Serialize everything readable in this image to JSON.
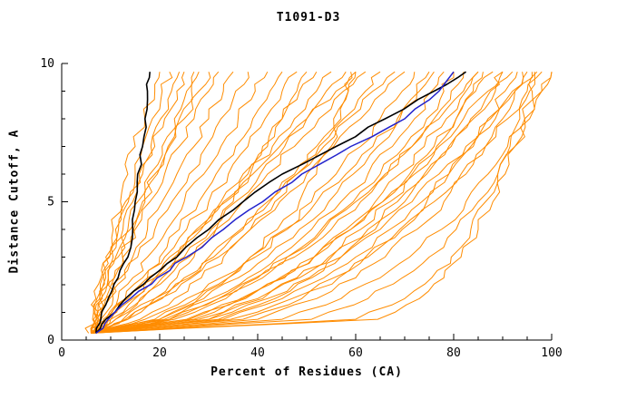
{
  "chart_data": {
    "type": "line",
    "title": "T1091-D3",
    "xlabel": "Percent of Residues (CA)",
    "ylabel": "Distance Cutoff, A",
    "xlim": [
      0,
      100
    ],
    "ylim": [
      0,
      10
    ],
    "x_major_ticks": [
      0,
      20,
      40,
      60,
      80,
      100
    ],
    "x_minor_step": 5,
    "y_major_ticks": [
      0,
      5,
      10
    ],
    "y_minor_step": 1,
    "grid": false,
    "legend": "none",
    "axis_color": "#000000",
    "background_color": "#ffffff",
    "y_levels": [
      0.25,
      0.75,
      1.5,
      2.25,
      3,
      4,
      5,
      6,
      7,
      8,
      9,
      9.7
    ],
    "series_groups": [
      {
        "name": "predicted-model-curves",
        "color": "#ff8c00",
        "width": 1,
        "jitter": 1.1,
        "series": [
          [
            6,
            6.5,
            7,
            8,
            9,
            10.5,
            12,
            13.5,
            15,
            17,
            19,
            20
          ],
          [
            7,
            7.2,
            7.8,
            8.6,
            9.6,
            11,
            13,
            15,
            16.5,
            18.5,
            20.5,
            22
          ],
          [
            6,
            7,
            7.7,
            9,
            10.5,
            12.5,
            14.5,
            16.5,
            19,
            21,
            23.5,
            25
          ],
          [
            6.5,
            7.2,
            8.3,
            9.5,
            11,
            13.5,
            15.5,
            18,
            20.5,
            23,
            25.5,
            27
          ],
          [
            6,
            7,
            8,
            9.5,
            11.5,
            14,
            16.5,
            19,
            22,
            25,
            28,
            30
          ],
          [
            7,
            7.8,
            9,
            10.8,
            12.5,
            15,
            18,
            21,
            24,
            27,
            30,
            32
          ],
          [
            6,
            7.2,
            9,
            10.7,
            12.4,
            14.7,
            17,
            19.5,
            21.7,
            24,
            26.5,
            28
          ],
          [
            6,
            7.5,
            9.8,
            12,
            14.5,
            17.5,
            20.5,
            23.5,
            27,
            30,
            33,
            35
          ],
          [
            5.5,
            6.3,
            7.2,
            8.3,
            9.8,
            11.6,
            13.6,
            15.8,
            18.2,
            20.2,
            22.4,
            24
          ],
          [
            6,
            8,
            10.5,
            13,
            15.5,
            19,
            22.5,
            26,
            29.5,
            32.5,
            35.5,
            38
          ],
          [
            6.5,
            8.5,
            11.5,
            14.5,
            17.5,
            21.5,
            25,
            29,
            32.5,
            36,
            39.5,
            42
          ],
          [
            6,
            9,
            13,
            16.5,
            20,
            24,
            28,
            31.5,
            35.5,
            39,
            42.5,
            45
          ],
          [
            6,
            9.5,
            13.5,
            17.5,
            21,
            25.5,
            30,
            34,
            38,
            41.5,
            45,
            48
          ],
          [
            6,
            13.5,
            19,
            23.5,
            27,
            31.5,
            35,
            38.5,
            42,
            45,
            48,
            50
          ],
          [
            6.5,
            10,
            14.5,
            19,
            23,
            28,
            32.5,
            37,
            41,
            45,
            48.5,
            52
          ],
          [
            6,
            10,
            15,
            19,
            23.5,
            28.5,
            33.5,
            38,
            43,
            47.5,
            52,
            55
          ],
          [
            7,
            11,
            16,
            20.5,
            25,
            30.5,
            35.5,
            40.5,
            45.5,
            50,
            54,
            58
          ],
          [
            6,
            9,
            13,
            17.5,
            22,
            27.5,
            33,
            39,
            44.5,
            50,
            56,
            60
          ],
          [
            6,
            11,
            16.5,
            21.5,
            26,
            31.5,
            37,
            42,
            47.5,
            52.5,
            57.5,
            62
          ],
          [
            6,
            13.5,
            20.5,
            26,
            31,
            37,
            42.5,
            47.5,
            52.5,
            57.5,
            62,
            65
          ],
          [
            6.5,
            12.5,
            19,
            25,
            30,
            36.5,
            42,
            48,
            53.5,
            58.5,
            63.5,
            68
          ],
          [
            6,
            13,
            20,
            26.5,
            32,
            38.5,
            44.5,
            50,
            55.5,
            61,
            66,
            70
          ],
          [
            6,
            20,
            28,
            34,
            38.5,
            44,
            48.5,
            52,
            55,
            57,
            58.5,
            59
          ],
          [
            6,
            16,
            23,
            28.5,
            33,
            38.5,
            43.5,
            48,
            52,
            55.5,
            58.5,
            60
          ],
          [
            6,
            19,
            27.5,
            34,
            39.5,
            46,
            51,
            56,
            61,
            65,
            69.5,
            72
          ],
          [
            6,
            20,
            29,
            36,
            42,
            48.5,
            54.5,
            59.5,
            64.5,
            69,
            72.5,
            75
          ],
          [
            6.5,
            21,
            30.5,
            38,
            44,
            51,
            57,
            62.5,
            67.5,
            72,
            75.5,
            78
          ],
          [
            6,
            22,
            32,
            39.5,
            46,
            53,
            59.5,
            65,
            70,
            74.5,
            78,
            80
          ],
          [
            6,
            23,
            33.5,
            41,
            47.5,
            55,
            61,
            66.5,
            71.5,
            76,
            79.5,
            82
          ],
          [
            6,
            22,
            32,
            40,
            46,
            53.5,
            60,
            66,
            71.5,
            77,
            82,
            85
          ],
          [
            6,
            27,
            37.5,
            45.5,
            51.5,
            58,
            64,
            69,
            74,
            78.5,
            82.5,
            85
          ],
          [
            6,
            26,
            37,
            45,
            51.5,
            59,
            65.5,
            71,
            76,
            80.5,
            84.5,
            88
          ],
          [
            6,
            25.5,
            36.5,
            44.5,
            51.5,
            59,
            65.5,
            71.5,
            77,
            82,
            87,
            90
          ],
          [
            6,
            32,
            43.5,
            51,
            57,
            64,
            70,
            74.5,
            79.5,
            83.5,
            87.5,
            90
          ],
          [
            6,
            28,
            40,
            48,
            55,
            62.5,
            68.5,
            74,
            79,
            84,
            88.5,
            92
          ],
          [
            6,
            37,
            49,
            56.5,
            62.5,
            69,
            74.5,
            79,
            83.5,
            87,
            90.5,
            93
          ],
          [
            6,
            30,
            42,
            50.5,
            57,
            65,
            71.5,
            77,
            82.5,
            87.5,
            92,
            95
          ],
          [
            6,
            33,
            45,
            53.5,
            60,
            67,
            73.5,
            79,
            84,
            88.5,
            92.5,
            96
          ],
          [
            6,
            34.5,
            47,
            55.5,
            62,
            69.5,
            76,
            81.5,
            86.5,
            91,
            95,
            98
          ],
          [
            6,
            45,
            57,
            65,
            71,
            77.5,
            82.5,
            87,
            91,
            94.5,
            98,
            100
          ],
          [
            6,
            51,
            62.5,
            69.5,
            75,
            80.5,
            85,
            89,
            92.5,
            95.5,
            98,
            100
          ],
          [
            6,
            64.5,
            73,
            78,
            81.5,
            85,
            88,
            90.5,
            92.5,
            94.5,
            96,
            97
          ],
          [
            6,
            60,
            70,
            75.5,
            79.5,
            83.5,
            86.5,
            89,
            91.5,
            93.5,
            95.5,
            96.5
          ],
          [
            6,
            40,
            52,
            60,
            66,
            72.5,
            78,
            82.5,
            86.5,
            90,
            92.5,
            94
          ],
          [
            6,
            30,
            41,
            48.5,
            54.5,
            61,
            67,
            72,
            76.5,
            80.5,
            84,
            86
          ],
          [
            6,
            17,
            25.5,
            32.5,
            38.5,
            45.5,
            52,
            58,
            63.5,
            68.5,
            73,
            76
          ]
        ]
      },
      {
        "name": "reference-curve-steep",
        "color": "#000000",
        "width": 1.6,
        "jitter": 0.45,
        "series": [
          [
            7,
            8,
            9.5,
            11.5,
            13.5,
            14.5,
            15,
            15.5,
            16.5,
            17,
            17.5,
            18
          ]
        ]
      },
      {
        "name": "reference-curve-diagonal",
        "color": "#000000",
        "width": 1.6,
        "jitter": 0.5,
        "series": [
          [
            7,
            9,
            13,
            18,
            23.5,
            30,
            37,
            45,
            56,
            66,
            76,
            82.5
          ]
        ]
      },
      {
        "name": "highlighted-model-curve",
        "color": "#2222cc",
        "width": 1.5,
        "jitter": 0.6,
        "series": [
          [
            7,
            9.5,
            14,
            19.5,
            25.5,
            33,
            41,
            49,
            59,
            70,
            77,
            80
          ]
        ]
      }
    ]
  }
}
